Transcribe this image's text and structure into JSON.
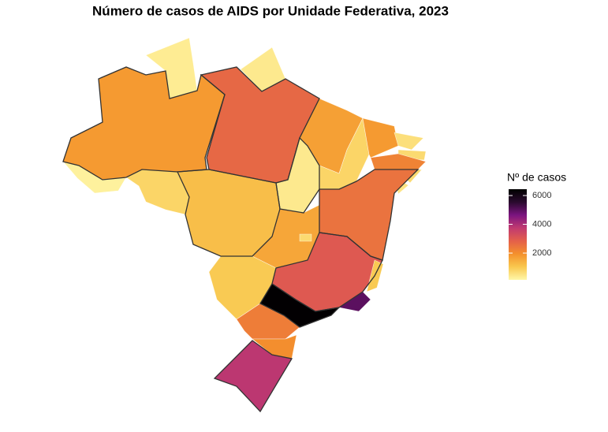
{
  "chart_data": {
    "type": "choropleth",
    "title": "Número de casos de AIDS por Unidade Federativa, 2023",
    "legend_title": "Nº de casos",
    "values": [
      1800,
      250,
      800,
      350,
      400,
      2700,
      1200,
      400,
      1700,
      800,
      1800,
      600,
      700,
      2200,
      700,
      500,
      2500,
      1600,
      700,
      1000,
      3000,
      1000,
      5000,
      6400,
      2300,
      2000,
      3800
    ],
    "colorlim": [
      140,
      6440
    ],
    "colorscale": [
      "#fff7a8",
      "#f9c84f",
      "#f4912c",
      "#e4604a",
      "#c13a70",
      "#7b1480",
      "#2a0a2e",
      "#000000"
    ],
    "colorticks": [
      2000,
      4000,
      6000
    ]
  }
}
